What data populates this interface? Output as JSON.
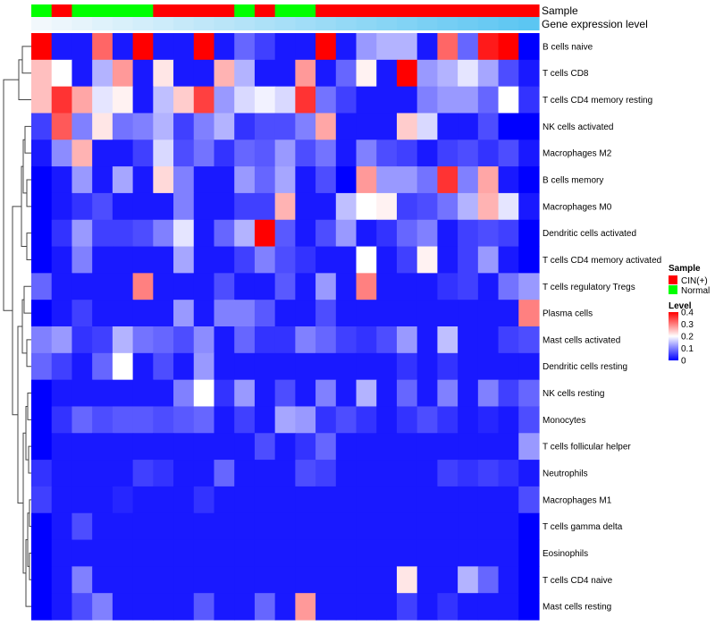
{
  "chart_data": {
    "type": "heatmap",
    "title": "",
    "annotation_tracks": [
      {
        "label": "Sample",
        "name": "sample"
      },
      {
        "label": "Gene expression level",
        "name": "expression"
      }
    ],
    "sample_groups": [
      "N",
      "C",
      "N",
      "N",
      "N",
      "N",
      "C",
      "C",
      "C",
      "C",
      "N",
      "C",
      "N",
      "N",
      "C",
      "C",
      "C",
      "C",
      "C",
      "C",
      "C",
      "C",
      "C",
      "C",
      "C"
    ],
    "expression_gradient": {
      "low": "#f2f8fc",
      "high": "#5cc6f2"
    },
    "rows": [
      "B cells naive",
      "T cells CD8",
      "T cells CD4 memory resting",
      "NK cells activated",
      "Macrophages M2",
      "B cells memory",
      "Macrophages M0",
      "Dendritic cells activated",
      "T cells CD4 memory activated",
      "T cells regulatory  Tregs",
      "Plasma cells",
      "Mast cells activated",
      "Dendritic cells resting",
      "NK cells resting",
      "Monocytes",
      "T cells follicular helper",
      "Neutrophils",
      "Macrophages M1",
      "T cells gamma delta",
      "Eosinophils",
      "T cells CD4 naive",
      "Mast cells resting"
    ],
    "values": [
      [
        0.4,
        0.02,
        0.02,
        0.32,
        0.02,
        0.4,
        0.02,
        0.02,
        0.4,
        0.02,
        0.08,
        0.05,
        0.02,
        0.02,
        0.4,
        0.02,
        0.12,
        0.14,
        0.14,
        0.02,
        0.32,
        0.08,
        0.38,
        0.4,
        0.0
      ],
      [
        0.25,
        0.2,
        0.02,
        0.14,
        0.28,
        0.02,
        0.22,
        0.02,
        0.02,
        0.26,
        0.14,
        0.02,
        0.02,
        0.28,
        0.02,
        0.08,
        0.21,
        0.02,
        0.4,
        0.12,
        0.14,
        0.18,
        0.13,
        0.06,
        0.02
      ],
      [
        0.25,
        0.36,
        0.27,
        0.18,
        0.21,
        0.02,
        0.15,
        0.24,
        0.35,
        0.12,
        0.17,
        0.19,
        0.17,
        0.36,
        0.09,
        0.05,
        0.02,
        0.02,
        0.02,
        0.1,
        0.12,
        0.12,
        0.08,
        0.2,
        0.04
      ],
      [
        0.05,
        0.33,
        0.1,
        0.22,
        0.09,
        0.1,
        0.14,
        0.05,
        0.1,
        0.14,
        0.04,
        0.06,
        0.06,
        0.1,
        0.27,
        0.02,
        0.02,
        0.02,
        0.24,
        0.17,
        0.02,
        0.02,
        0.06,
        0.0,
        0.0
      ],
      [
        0.02,
        0.11,
        0.26,
        0.02,
        0.02,
        0.05,
        0.17,
        0.06,
        0.09,
        0.04,
        0.08,
        0.07,
        0.12,
        0.06,
        0.09,
        0.02,
        0.1,
        0.06,
        0.05,
        0.02,
        0.05,
        0.06,
        0.04,
        0.06,
        0.02
      ],
      [
        0.0,
        0.02,
        0.12,
        0.02,
        0.13,
        0.02,
        0.23,
        0.1,
        0.02,
        0.02,
        0.12,
        0.08,
        0.13,
        0.02,
        0.06,
        0.0,
        0.28,
        0.12,
        0.12,
        0.09,
        0.36,
        0.1,
        0.27,
        0.02,
        0.0
      ],
      [
        0.0,
        0.02,
        0.04,
        0.06,
        0.02,
        0.02,
        0.02,
        0.1,
        0.02,
        0.02,
        0.05,
        0.05,
        0.26,
        0.02,
        0.02,
        0.15,
        0.2,
        0.21,
        0.05,
        0.06,
        0.09,
        0.14,
        0.26,
        0.18,
        0.02
      ],
      [
        0.0,
        0.04,
        0.12,
        0.05,
        0.05,
        0.06,
        0.1,
        0.18,
        0.02,
        0.08,
        0.14,
        0.4,
        0.07,
        0.02,
        0.06,
        0.12,
        0.02,
        0.04,
        0.08,
        0.1,
        0.02,
        0.05,
        0.06,
        0.05,
        0.0
      ],
      [
        0.0,
        0.02,
        0.1,
        0.02,
        0.02,
        0.02,
        0.02,
        0.13,
        0.02,
        0.02,
        0.05,
        0.1,
        0.06,
        0.04,
        0.02,
        0.02,
        0.2,
        0.02,
        0.05,
        0.21,
        0.02,
        0.05,
        0.12,
        0.02,
        0.0
      ],
      [
        0.08,
        0.02,
        0.02,
        0.02,
        0.02,
        0.3,
        0.02,
        0.02,
        0.02,
        0.06,
        0.02,
        0.02,
        0.07,
        0.02,
        0.12,
        0.02,
        0.3,
        0.02,
        0.02,
        0.02,
        0.04,
        0.05,
        0.02,
        0.09,
        0.12
      ],
      [
        0.0,
        0.02,
        0.05,
        0.02,
        0.02,
        0.02,
        0.02,
        0.12,
        0.02,
        0.1,
        0.1,
        0.07,
        0.02,
        0.02,
        0.06,
        0.02,
        0.02,
        0.02,
        0.02,
        0.02,
        0.02,
        0.02,
        0.02,
        0.02,
        0.3
      ],
      [
        0.1,
        0.12,
        0.04,
        0.05,
        0.14,
        0.09,
        0.08,
        0.06,
        0.11,
        0.02,
        0.08,
        0.04,
        0.04,
        0.1,
        0.08,
        0.05,
        0.04,
        0.06,
        0.12,
        0.02,
        0.15,
        0.02,
        0.02,
        0.05,
        0.06
      ],
      [
        0.08,
        0.05,
        0.02,
        0.08,
        0.2,
        0.02,
        0.06,
        0.02,
        0.12,
        0.02,
        0.02,
        0.02,
        0.02,
        0.02,
        0.02,
        0.02,
        0.02,
        0.02,
        0.04,
        0.02,
        0.04,
        0.02,
        0.02,
        0.02,
        0.02
      ],
      [
        0.0,
        0.02,
        0.02,
        0.02,
        0.02,
        0.02,
        0.02,
        0.1,
        0.2,
        0.04,
        0.12,
        0.02,
        0.06,
        0.02,
        0.1,
        0.02,
        0.14,
        0.02,
        0.08,
        0.02,
        0.1,
        0.02,
        0.1,
        0.05,
        0.08
      ],
      [
        0.0,
        0.04,
        0.08,
        0.06,
        0.07,
        0.07,
        0.06,
        0.07,
        0.08,
        0.02,
        0.05,
        0.02,
        0.13,
        0.12,
        0.04,
        0.06,
        0.04,
        0.02,
        0.04,
        0.06,
        0.04,
        0.02,
        0.03,
        0.02,
        0.06
      ],
      [
        0.0,
        0.02,
        0.02,
        0.02,
        0.02,
        0.02,
        0.02,
        0.02,
        0.02,
        0.02,
        0.02,
        0.06,
        0.02,
        0.04,
        0.08,
        0.02,
        0.02,
        0.02,
        0.02,
        0.02,
        0.02,
        0.02,
        0.02,
        0.02,
        0.12
      ],
      [
        0.04,
        0.02,
        0.02,
        0.02,
        0.02,
        0.05,
        0.04,
        0.02,
        0.02,
        0.08,
        0.02,
        0.02,
        0.02,
        0.06,
        0.05,
        0.02,
        0.02,
        0.02,
        0.02,
        0.02,
        0.05,
        0.04,
        0.05,
        0.04,
        0.02
      ],
      [
        0.05,
        0.02,
        0.02,
        0.02,
        0.03,
        0.02,
        0.02,
        0.02,
        0.04,
        0.02,
        0.02,
        0.02,
        0.02,
        0.02,
        0.02,
        0.02,
        0.02,
        0.02,
        0.02,
        0.02,
        0.02,
        0.02,
        0.02,
        0.02,
        0.06
      ],
      [
        0.0,
        0.02,
        0.06,
        0.02,
        0.02,
        0.02,
        0.02,
        0.02,
        0.02,
        0.02,
        0.02,
        0.02,
        0.02,
        0.02,
        0.02,
        0.02,
        0.02,
        0.02,
        0.02,
        0.02,
        0.02,
        0.02,
        0.02,
        0.02,
        0.0
      ],
      [
        0.0,
        0.02,
        0.02,
        0.02,
        0.02,
        0.02,
        0.02,
        0.02,
        0.02,
        0.02,
        0.02,
        0.02,
        0.02,
        0.02,
        0.02,
        0.02,
        0.02,
        0.02,
        0.02,
        0.02,
        0.02,
        0.02,
        0.02,
        0.02,
        0.0
      ],
      [
        0.0,
        0.02,
        0.1,
        0.02,
        0.02,
        0.02,
        0.02,
        0.02,
        0.02,
        0.02,
        0.02,
        0.02,
        0.02,
        0.02,
        0.02,
        0.02,
        0.02,
        0.02,
        0.22,
        0.02,
        0.02,
        0.14,
        0.08,
        0.02,
        0.0
      ],
      [
        0.0,
        0.02,
        0.06,
        0.1,
        0.02,
        0.02,
        0.02,
        0.02,
        0.07,
        0.02,
        0.02,
        0.08,
        0.02,
        0.28,
        0.02,
        0.02,
        0.02,
        0.02,
        0.05,
        0.02,
        0.04,
        0.02,
        0.02,
        0.02,
        0.0
      ]
    ],
    "scale": {
      "min": 0,
      "max": 0.4,
      "low_color": "#0000ff",
      "mid_color": "#ffffff",
      "high_color": "#ff0000"
    },
    "legend_sample": {
      "title": "Sample",
      "items": [
        {
          "label": "CIN(+)",
          "color": "#ff0000"
        },
        {
          "label": "Normal",
          "color": "#00ff00"
        }
      ]
    },
    "legend_level": {
      "title": "Level",
      "ticks": [
        {
          "label": "0.4",
          "value": 0.4
        },
        {
          "label": "0.3",
          "value": 0.3
        },
        {
          "label": "0.2",
          "value": 0.2
        },
        {
          "label": "0.1",
          "value": 0.1
        },
        {
          "label": "0",
          "value": 0
        }
      ]
    }
  }
}
